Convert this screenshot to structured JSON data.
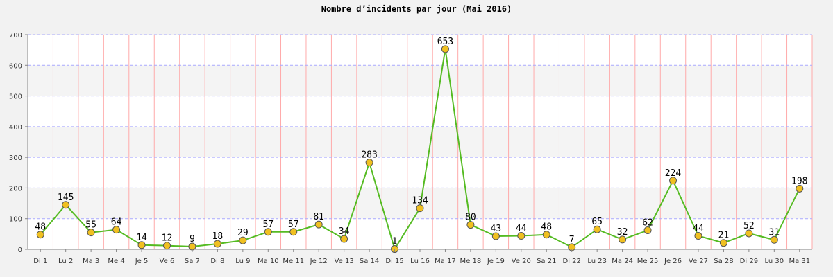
{
  "chart_data": {
    "type": "line",
    "title": "Nombre d’incidents par jour (Mai 2016)",
    "xlabel": "",
    "ylabel": "",
    "ylim": [
      0,
      700
    ],
    "yticks": [
      0,
      100,
      200,
      300,
      400,
      500,
      600,
      700
    ],
    "grid": true,
    "categories": [
      "Di 1",
      "Lu 2",
      "Ma 3",
      "Me 4",
      "Je 5",
      "Ve 6",
      "Sa 7",
      "Di 8",
      "Lu 9",
      "Ma 10",
      "Me 11",
      "Je 12",
      "Ve 13",
      "Sa 14",
      "Di 15",
      "Lu 16",
      "Ma 17",
      "Me 18",
      "Je 19",
      "Ve 20",
      "Sa 21",
      "Di 22",
      "Lu 23",
      "Ma 24",
      "Me 25",
      "Je 26",
      "Ve 27",
      "Sa 28",
      "Di 29",
      "Lu 30",
      "Ma 31"
    ],
    "series": [
      {
        "values": [
          48,
          145,
          55,
          64,
          14,
          12,
          9,
          18,
          29,
          57,
          57,
          81,
          34,
          283,
          1,
          134,
          653,
          80,
          43,
          44,
          48,
          7,
          65,
          32,
          62,
          224,
          44,
          21,
          52,
          31,
          198
        ]
      }
    ],
    "colors": {
      "line": "#55bb22",
      "marker_fill": "#f0c020",
      "marker_stroke": "#555555",
      "plot_bg": "#ffffff",
      "band_bg": "#f4f4f4",
      "hgrid": "#aaaaff",
      "vgrid": "#ffaaaa"
    }
  }
}
